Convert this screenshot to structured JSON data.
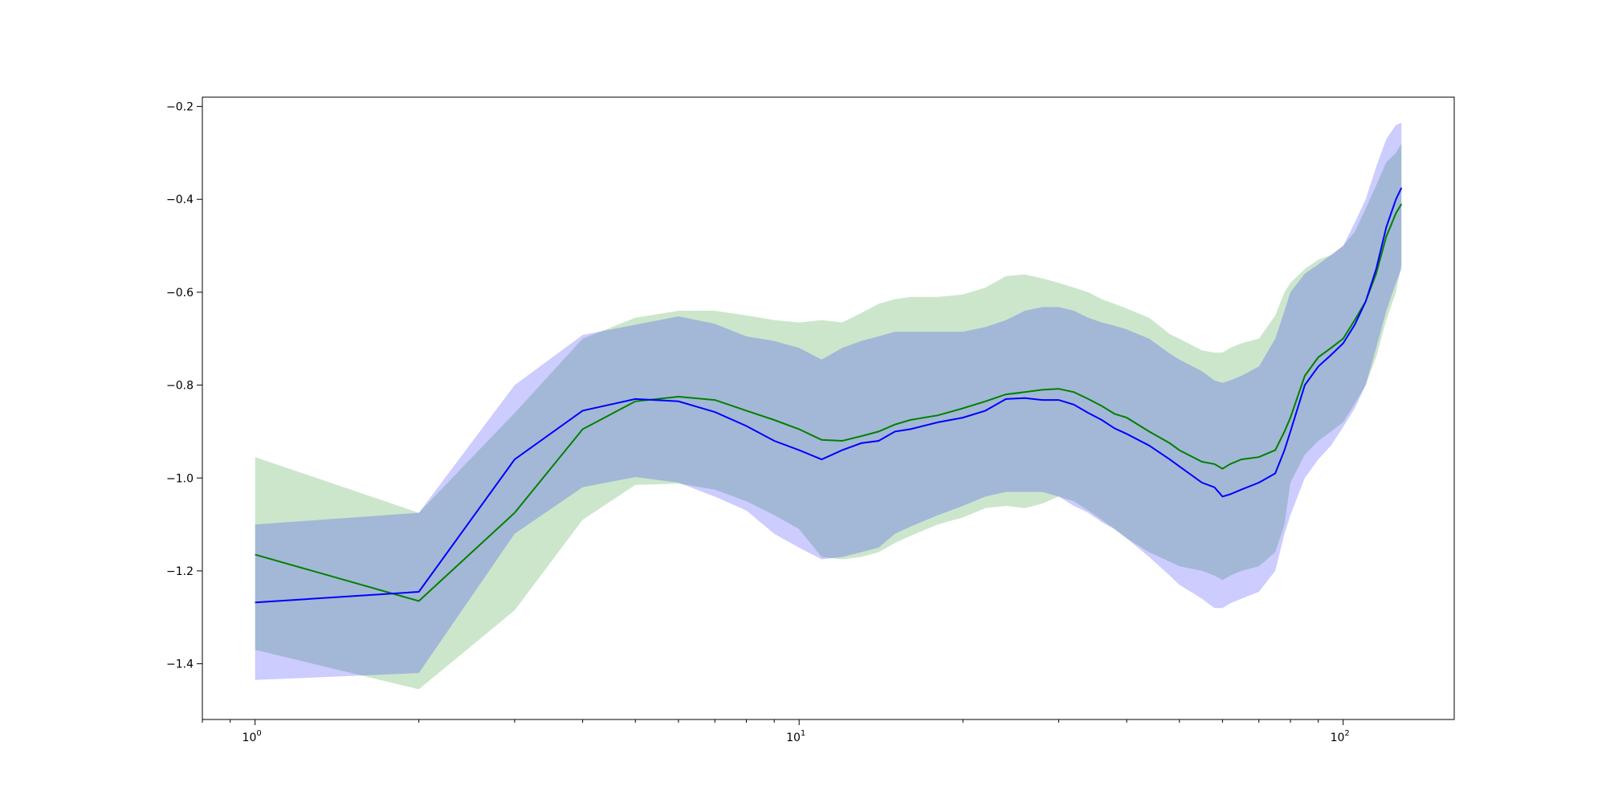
{
  "chart_data": {
    "type": "line",
    "title": "",
    "xlabel": "",
    "ylabel": "",
    "xscale": "log",
    "xlim": [
      0.8,
      160
    ],
    "ylim": [
      -1.52,
      -0.18
    ],
    "grid": false,
    "x_ticks": [
      {
        "value": 1,
        "base": "10",
        "exp": "0"
      },
      {
        "value": 10,
        "base": "10",
        "exp": "1"
      },
      {
        "value": 100,
        "base": "10",
        "exp": "2"
      }
    ],
    "y_ticks": [
      {
        "value": -0.2,
        "label": "−0.2"
      },
      {
        "value": -0.4,
        "label": "−0.4"
      },
      {
        "value": -0.6,
        "label": "−0.6"
      },
      {
        "value": -0.8,
        "label": "−0.8"
      },
      {
        "value": -1.0,
        "label": "−1.0"
      },
      {
        "value": -1.2,
        "label": "−1.2"
      },
      {
        "value": -1.4,
        "label": "−1.4"
      }
    ],
    "series": [
      {
        "color": "#008000",
        "band_color": "#008000",
        "band_opacity": 0.2,
        "x": [
          1,
          2,
          3,
          4,
          5,
          6,
          7,
          8,
          9,
          10,
          11,
          12,
          13,
          14,
          15,
          16,
          18,
          20,
          22,
          24,
          26,
          28,
          30,
          32,
          34,
          36,
          38,
          40,
          44,
          48,
          50,
          55,
          58,
          60,
          62,
          65,
          70,
          75,
          78,
          80,
          85,
          90,
          95,
          100,
          105,
          110,
          115,
          120,
          125,
          128
        ],
        "y": [
          -1.165,
          -1.265,
          -1.075,
          -0.895,
          -0.835,
          -0.825,
          -0.832,
          -0.855,
          -0.875,
          -0.895,
          -0.918,
          -0.92,
          -0.91,
          -0.9,
          -0.885,
          -0.875,
          -0.865,
          -0.85,
          -0.835,
          -0.82,
          -0.815,
          -0.81,
          -0.808,
          -0.815,
          -0.83,
          -0.845,
          -0.862,
          -0.87,
          -0.9,
          -0.925,
          -0.94,
          -0.965,
          -0.97,
          -0.98,
          -0.97,
          -0.96,
          -0.955,
          -0.94,
          -0.9,
          -0.87,
          -0.78,
          -0.74,
          -0.72,
          -0.7,
          -0.66,
          -0.62,
          -0.56,
          -0.48,
          -0.43,
          -0.41
        ],
        "lower": [
          -1.37,
          -1.455,
          -1.285,
          -1.09,
          -1.015,
          -1.012,
          -1.025,
          -1.05,
          -1.08,
          -1.11,
          -1.17,
          -1.175,
          -1.17,
          -1.16,
          -1.14,
          -1.125,
          -1.1,
          -1.085,
          -1.065,
          -1.06,
          -1.065,
          -1.055,
          -1.04,
          -1.05,
          -1.07,
          -1.09,
          -1.11,
          -1.13,
          -1.16,
          -1.18,
          -1.19,
          -1.2,
          -1.21,
          -1.22,
          -1.21,
          -1.2,
          -1.19,
          -1.16,
          -1.1,
          -1.01,
          -0.95,
          -0.92,
          -0.9,
          -0.88,
          -0.84,
          -0.8,
          -0.74,
          -0.66,
          -0.6,
          -0.54
        ],
        "upper": [
          -0.955,
          -1.075,
          -0.86,
          -0.7,
          -0.655,
          -0.64,
          -0.64,
          -0.65,
          -0.66,
          -0.665,
          -0.66,
          -0.665,
          -0.645,
          -0.625,
          -0.615,
          -0.61,
          -0.61,
          -0.605,
          -0.59,
          -0.565,
          -0.562,
          -0.57,
          -0.58,
          -0.59,
          -0.6,
          -0.615,
          -0.625,
          -0.635,
          -0.655,
          -0.69,
          -0.7,
          -0.725,
          -0.73,
          -0.73,
          -0.72,
          -0.71,
          -0.7,
          -0.65,
          -0.6,
          -0.58,
          -0.55,
          -0.53,
          -0.52,
          -0.5,
          -0.47,
          -0.42,
          -0.37,
          -0.32,
          -0.3,
          -0.28
        ]
      },
      {
        "color": "#0000ff",
        "band_color": "#0000ff",
        "band_opacity": 0.2,
        "x": [
          1,
          2,
          3,
          4,
          5,
          6,
          7,
          8,
          9,
          10,
          11,
          12,
          13,
          14,
          15,
          16,
          18,
          20,
          22,
          24,
          26,
          28,
          30,
          32,
          34,
          36,
          38,
          40,
          44,
          48,
          50,
          55,
          58,
          60,
          62,
          65,
          70,
          75,
          78,
          80,
          85,
          90,
          95,
          100,
          105,
          110,
          115,
          120,
          125,
          128
        ],
        "y": [
          -1.268,
          -1.245,
          -0.96,
          -0.855,
          -0.83,
          -0.835,
          -0.858,
          -0.888,
          -0.92,
          -0.94,
          -0.96,
          -0.94,
          -0.925,
          -0.92,
          -0.9,
          -0.895,
          -0.88,
          -0.87,
          -0.855,
          -0.83,
          -0.828,
          -0.832,
          -0.832,
          -0.842,
          -0.86,
          -0.875,
          -0.893,
          -0.905,
          -0.93,
          -0.96,
          -0.975,
          -1.01,
          -1.02,
          -1.04,
          -1.035,
          -1.025,
          -1.01,
          -0.99,
          -0.94,
          -0.9,
          -0.8,
          -0.76,
          -0.735,
          -0.71,
          -0.67,
          -0.62,
          -0.55,
          -0.46,
          -0.4,
          -0.375
        ],
        "lower": [
          -1.435,
          -1.42,
          -1.12,
          -1.02,
          -0.998,
          -1.01,
          -1.04,
          -1.07,
          -1.12,
          -1.15,
          -1.175,
          -1.17,
          -1.16,
          -1.15,
          -1.12,
          -1.105,
          -1.08,
          -1.06,
          -1.04,
          -1.03,
          -1.03,
          -1.03,
          -1.04,
          -1.06,
          -1.075,
          -1.095,
          -1.11,
          -1.13,
          -1.17,
          -1.21,
          -1.23,
          -1.26,
          -1.28,
          -1.28,
          -1.27,
          -1.26,
          -1.245,
          -1.2,
          -1.12,
          -1.08,
          -1.0,
          -0.96,
          -0.93,
          -0.89,
          -0.85,
          -0.8,
          -0.72,
          -0.64,
          -0.58,
          -0.55
        ],
        "upper": [
          -1.1,
          -1.075,
          -0.8,
          -0.692,
          -0.67,
          -0.652,
          -0.668,
          -0.695,
          -0.705,
          -0.72,
          -0.745,
          -0.72,
          -0.705,
          -0.695,
          -0.685,
          -0.685,
          -0.685,
          -0.685,
          -0.675,
          -0.66,
          -0.64,
          -0.632,
          -0.632,
          -0.64,
          -0.655,
          -0.665,
          -0.672,
          -0.68,
          -0.7,
          -0.732,
          -0.745,
          -0.77,
          -0.79,
          -0.795,
          -0.79,
          -0.78,
          -0.76,
          -0.7,
          -0.64,
          -0.6,
          -0.56,
          -0.54,
          -0.52,
          -0.5,
          -0.45,
          -0.4,
          -0.33,
          -0.27,
          -0.24,
          -0.235
        ]
      }
    ]
  }
}
